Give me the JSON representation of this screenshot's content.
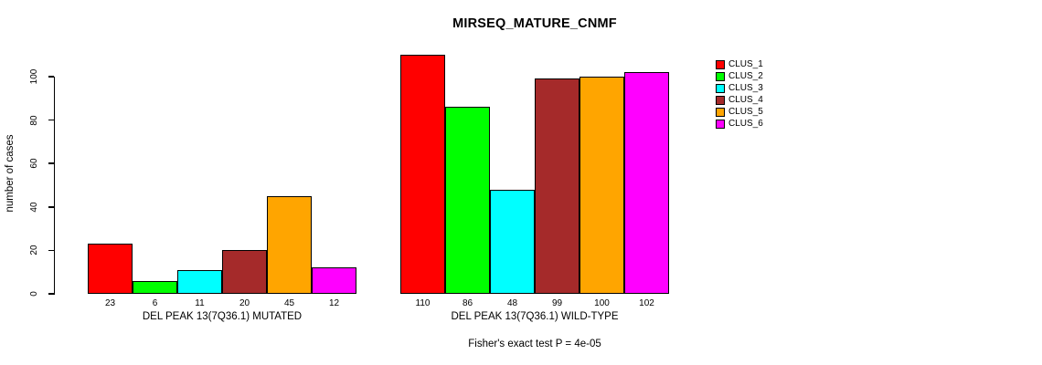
{
  "chart_data": {
    "type": "bar",
    "title": "MIRSEQ_MATURE_CNMF",
    "ylabel": "number of cases",
    "caption": "Fisher's exact test P = 4e-05",
    "yticks": [
      0,
      20,
      40,
      60,
      80,
      100
    ],
    "ylim": [
      0,
      110
    ],
    "grid": false,
    "legend_position": "top-right-inside",
    "axis_color": "#000000",
    "background_color": "#ffffff",
    "series": [
      {
        "name": "CLUS_1",
        "color": "#FF0000"
      },
      {
        "name": "CLUS_2",
        "color": "#00FF00"
      },
      {
        "name": "CLUS_3",
        "color": "#00FFFF"
      },
      {
        "name": "CLUS_4",
        "color": "#A52A2A"
      },
      {
        "name": "CLUS_5",
        "color": "#FFA500"
      },
      {
        "name": "CLUS_6",
        "color": "#FF00FF"
      }
    ],
    "groups": [
      {
        "label": "DEL PEAK 13(7Q36.1) MUTATED",
        "values": [
          23,
          6,
          11,
          20,
          45,
          12
        ]
      },
      {
        "label": "DEL PEAK 13(7Q36.1) WILD-TYPE",
        "values": [
          110,
          86,
          48,
          99,
          100,
          102
        ]
      }
    ]
  }
}
